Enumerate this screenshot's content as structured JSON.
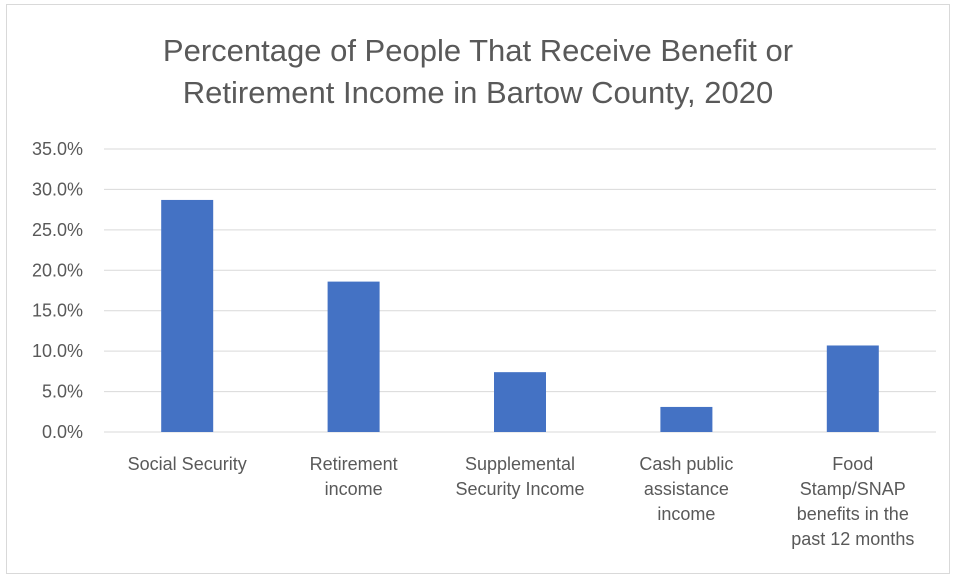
{
  "chart_data": {
    "type": "bar",
    "title": "Percentage of People That Receive Benefit or\nRetirement Income in Bartow County, 2020",
    "categories": [
      [
        "Social Security"
      ],
      [
        "Retirement",
        "income"
      ],
      [
        "Supplemental",
        "Security Income"
      ],
      [
        "Cash public",
        "assistance",
        "income"
      ],
      [
        "Food",
        "Stamp/SNAP",
        "benefits in the",
        "past 12 months"
      ]
    ],
    "values": [
      28.7,
      18.6,
      7.4,
      3.1,
      10.7
    ],
    "ylim": [
      0,
      35
    ],
    "yticks": [
      "0.0%",
      "5.0%",
      "10.0%",
      "15.0%",
      "20.0%",
      "25.0%",
      "30.0%",
      "35.0%"
    ],
    "grid": true,
    "legend": "none",
    "bar_color": "#4472c4",
    "grid_color": "#d9d9d9",
    "text_color": "#595959"
  }
}
